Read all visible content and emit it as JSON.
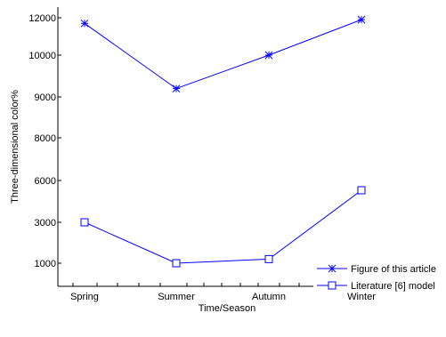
{
  "chart_data": {
    "type": "line",
    "title": "",
    "xlabel": "Time/Season",
    "ylabel": "Three-dimensional color%",
    "categories": [
      "Spring",
      "Summer",
      "Autumn",
      "Winter"
    ],
    "y_tick_labels": [
      "1000",
      "3000",
      "6000",
      "8000",
      "9000",
      "10000",
      "12000"
    ],
    "series": [
      {
        "name": "Figure of this article",
        "marker": "star",
        "color": "#0000ff",
        "values": [
          11700,
          9200,
          10000,
          11900
        ]
      },
      {
        "name": "Literature [6] model",
        "marker": "square",
        "color": "#0000ff",
        "values": [
          3000,
          1000,
          1200,
          5300
        ]
      }
    ],
    "grid": false,
    "legend_position": "bottom-right"
  }
}
